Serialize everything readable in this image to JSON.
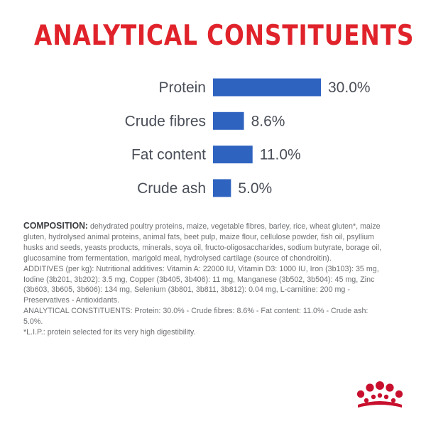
{
  "title": "ANALYTICAL CONSTITUENTS",
  "colors": {
    "title": "#e0232b",
    "bar": "#2f63c0",
    "label": "#4a4e58",
    "logo": "#c8102e"
  },
  "chart_data": {
    "type": "bar",
    "orientation": "horizontal",
    "categories": [
      "Protein",
      "Crude fibres",
      "Fat content",
      "Crude ash"
    ],
    "values": [
      30.0,
      8.6,
      11.0,
      5.0
    ],
    "value_labels": [
      "30.0%",
      "8.6%",
      "11.0%",
      "5.0%"
    ],
    "unit": "%",
    "title": "ANALYTICAL CONSTITUENTS",
    "xlim": [
      0,
      30
    ],
    "grid": false,
    "axes_visible": false
  },
  "composition": {
    "lead": "COMPOSITION:",
    "text": " dehydrated poultry proteins, maize, vegetable fibres, barley, rice, wheat gluten*, maize gluten, hydrolysed animal proteins, animal fats, beet pulp, maize flour, cellulose powder, fish oil, psyllium husks and seeds, yeasts products, minerals, soya oil, fructo-oligosaccharides, sodium butyrate, borage oil, glucosamine from fermentation, marigold meal, hydrolysed cartilage (source of chondroitin).",
    "additives": "ADDITIVES (per kg): Nutritional additives: Vitamin A: 22000 IU, Vitamin D3: 1000 IU, Iron (3b103): 35 mg, Iodine (3b201, 3b202): 3.5 mg, Copper (3b405, 3b406): 11 mg, Manganese (3b502, 3b504): 45 mg, Zinc (3b603, 3b605, 3b606): 134 mg, Selenium (3b801, 3b811, 3b812): 0.04 mg, L-carnitine: 200 mg - Preservatives - Antioxidants.",
    "analytical": "ANALYTICAL CONSTITUENTS: Protein: 30.0% - Crude fibres: 8.6% - Fat content: 11.0% - Crude ash: 5.0%.",
    "footnote": "*L.I.P.: protein selected for its very high digestibility."
  },
  "logo": {
    "name": "royal-canin-crown-logo"
  }
}
